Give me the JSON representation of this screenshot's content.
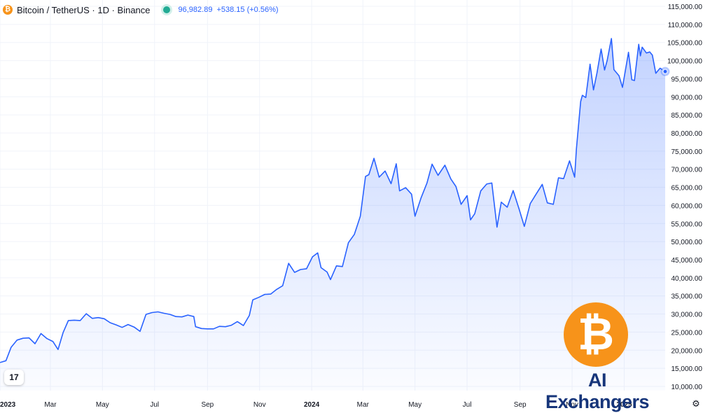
{
  "legend": {
    "symbol": "Bitcoin / TetherUS · 1D · Binance",
    "price": "96,982.89",
    "change": "+538.15 (+0.56%)",
    "coin_glyph": "₿",
    "icon": "bitcoin-icon"
  },
  "watermark": {
    "brand_name": "AI Exchangers",
    "brand_glyph": "₿",
    "tv_logo": "17"
  },
  "colors": {
    "line": "#2962ff",
    "fill": "#2962ff",
    "grid": "#f0f3fa",
    "axis_text": "#131722",
    "brand_orange": "#f7931a",
    "brand_navy": "#16357a",
    "status": "#22ab94"
  },
  "chart_data": {
    "type": "area",
    "title": "Bitcoin / TetherUS · 1D · Binance",
    "xlabel": "",
    "ylabel": "",
    "xlim": [
      "2023-01-01",
      "2025-02-18"
    ],
    "ylim": [
      10000,
      115000
    ],
    "grid": true,
    "legend_position": "top-left",
    "y_axis_position": "right",
    "y_ticks": [
      10000,
      15000,
      20000,
      25000,
      30000,
      35000,
      40000,
      45000,
      50000,
      55000,
      60000,
      65000,
      70000,
      75000,
      80000,
      85000,
      90000,
      95000,
      100000,
      105000,
      110000,
      115000
    ],
    "y_tick_labels": [
      "10,000.00",
      "15,000.00",
      "20,000.00",
      "25,000.00",
      "30,000.00",
      "35,000.00",
      "40,000.00",
      "45,000.00",
      "50,000.00",
      "55,000.00",
      "60,000.00",
      "65,000.00",
      "70,000.00",
      "75,000.00",
      "80,000.00",
      "85,000.00",
      "90,000.00",
      "95,000.00",
      "100,000.00",
      "105,000.00",
      "110,000.00",
      "115,000.00"
    ],
    "x_ticks": [
      {
        "date": "2023-01-01",
        "label": "2023",
        "bold": true
      },
      {
        "date": "2023-03-01",
        "label": "Mar",
        "bold": false
      },
      {
        "date": "2023-05-01",
        "label": "May",
        "bold": false
      },
      {
        "date": "2023-07-01",
        "label": "Jul",
        "bold": false
      },
      {
        "date": "2023-09-01",
        "label": "Sep",
        "bold": false
      },
      {
        "date": "2023-11-01",
        "label": "Nov",
        "bold": false
      },
      {
        "date": "2024-01-01",
        "label": "2024",
        "bold": true
      },
      {
        "date": "2024-03-01",
        "label": "Mar",
        "bold": false
      },
      {
        "date": "2024-05-01",
        "label": "May",
        "bold": false
      },
      {
        "date": "2024-07-01",
        "label": "Jul",
        "bold": false
      },
      {
        "date": "2024-09-01",
        "label": "Sep",
        "bold": false
      },
      {
        "date": "2024-11-01",
        "label": "Nov",
        "bold": false
      },
      {
        "date": "2025-01-01",
        "label": "2025",
        "bold": true
      }
    ],
    "series": [
      {
        "name": "",
        "points": [
          [
            "2023-01-01",
            16600
          ],
          [
            "2023-01-08",
            17100
          ],
          [
            "2023-01-14",
            20800
          ],
          [
            "2023-01-21",
            22800
          ],
          [
            "2023-01-28",
            23300
          ],
          [
            "2023-02-04",
            23400
          ],
          [
            "2023-02-11",
            21800
          ],
          [
            "2023-02-18",
            24600
          ],
          [
            "2023-02-25",
            23200
          ],
          [
            "2023-03-04",
            22400
          ],
          [
            "2023-03-10",
            20200
          ],
          [
            "2023-03-16",
            24900
          ],
          [
            "2023-03-22",
            28200
          ],
          [
            "2023-03-29",
            28300
          ],
          [
            "2023-04-05",
            28200
          ],
          [
            "2023-04-12",
            30100
          ],
          [
            "2023-04-19",
            28800
          ],
          [
            "2023-04-26",
            29000
          ],
          [
            "2023-05-03",
            28700
          ],
          [
            "2023-05-10",
            27600
          ],
          [
            "2023-05-17",
            27000
          ],
          [
            "2023-05-24",
            26300
          ],
          [
            "2023-05-31",
            27100
          ],
          [
            "2023-06-07",
            26400
          ],
          [
            "2023-06-14",
            25200
          ],
          [
            "2023-06-21",
            29900
          ],
          [
            "2023-06-28",
            30400
          ],
          [
            "2023-07-05",
            30600
          ],
          [
            "2023-07-12",
            30200
          ],
          [
            "2023-07-19",
            29900
          ],
          [
            "2023-07-26",
            29300
          ],
          [
            "2023-08-02",
            29200
          ],
          [
            "2023-08-09",
            29700
          ],
          [
            "2023-08-16",
            29300
          ],
          [
            "2023-08-18",
            26500
          ],
          [
            "2023-08-25",
            26000
          ],
          [
            "2023-09-01",
            25900
          ],
          [
            "2023-09-08",
            25900
          ],
          [
            "2023-09-15",
            26600
          ],
          [
            "2023-09-22",
            26500
          ],
          [
            "2023-09-29",
            26900
          ],
          [
            "2023-10-06",
            27900
          ],
          [
            "2023-10-13",
            26800
          ],
          [
            "2023-10-20",
            29600
          ],
          [
            "2023-10-24",
            33900
          ],
          [
            "2023-10-31",
            34600
          ],
          [
            "2023-11-07",
            35400
          ],
          [
            "2023-11-14",
            35500
          ],
          [
            "2023-11-21",
            36800
          ],
          [
            "2023-11-28",
            37800
          ],
          [
            "2023-12-05",
            44000
          ],
          [
            "2023-12-12",
            41500
          ],
          [
            "2023-12-19",
            42300
          ],
          [
            "2023-12-26",
            42500
          ],
          [
            "2024-01-02",
            45800
          ],
          [
            "2024-01-08",
            46900
          ],
          [
            "2024-01-12",
            42800
          ],
          [
            "2024-01-19",
            41600
          ],
          [
            "2024-01-23",
            39500
          ],
          [
            "2024-01-30",
            43300
          ],
          [
            "2024-02-06",
            43100
          ],
          [
            "2024-02-13",
            49700
          ],
          [
            "2024-02-20",
            52000
          ],
          [
            "2024-02-27",
            57000
          ],
          [
            "2024-03-04",
            68000
          ],
          [
            "2024-03-08",
            68500
          ],
          [
            "2024-03-14",
            73000
          ],
          [
            "2024-03-20",
            67800
          ],
          [
            "2024-03-27",
            69500
          ],
          [
            "2024-04-03",
            66000
          ],
          [
            "2024-04-09",
            71500
          ],
          [
            "2024-04-13",
            64000
          ],
          [
            "2024-04-20",
            64900
          ],
          [
            "2024-04-27",
            63100
          ],
          [
            "2024-05-01",
            57000
          ],
          [
            "2024-05-08",
            62000
          ],
          [
            "2024-05-15",
            66200
          ],
          [
            "2024-05-21",
            71400
          ],
          [
            "2024-05-28",
            68300
          ],
          [
            "2024-06-05",
            71100
          ],
          [
            "2024-06-12",
            67300
          ],
          [
            "2024-06-18",
            65200
          ],
          [
            "2024-06-24",
            60300
          ],
          [
            "2024-07-01",
            62700
          ],
          [
            "2024-07-05",
            56000
          ],
          [
            "2024-07-10",
            57700
          ],
          [
            "2024-07-17",
            64000
          ],
          [
            "2024-07-24",
            65900
          ],
          [
            "2024-07-30",
            66200
          ],
          [
            "2024-08-05",
            54000
          ],
          [
            "2024-08-10",
            60900
          ],
          [
            "2024-08-17",
            59500
          ],
          [
            "2024-08-24",
            64100
          ],
          [
            "2024-08-31",
            58900
          ],
          [
            "2024-09-06",
            54200
          ],
          [
            "2024-09-13",
            60500
          ],
          [
            "2024-09-20",
            63200
          ],
          [
            "2024-09-27",
            65800
          ],
          [
            "2024-10-03",
            60700
          ],
          [
            "2024-10-10",
            60300
          ],
          [
            "2024-10-16",
            67600
          ],
          [
            "2024-10-22",
            67400
          ],
          [
            "2024-10-29",
            72300
          ],
          [
            "2024-11-04",
            67800
          ],
          [
            "2024-11-06",
            75600
          ],
          [
            "2024-11-11",
            88700
          ],
          [
            "2024-11-13",
            90400
          ],
          [
            "2024-11-17",
            89800
          ],
          [
            "2024-11-22",
            99000
          ],
          [
            "2024-11-26",
            91900
          ],
          [
            "2024-11-30",
            96400
          ],
          [
            "2024-12-05",
            103200
          ],
          [
            "2024-12-09",
            97400
          ],
          [
            "2024-12-12",
            100000
          ],
          [
            "2024-12-17",
            106100
          ],
          [
            "2024-12-20",
            97500
          ],
          [
            "2024-12-26",
            95800
          ],
          [
            "2024-12-30",
            92600
          ],
          [
            "2025-01-06",
            102300
          ],
          [
            "2025-01-10",
            94700
          ],
          [
            "2025-01-13",
            94500
          ],
          [
            "2025-01-18",
            104500
          ],
          [
            "2025-01-20",
            101300
          ],
          [
            "2025-01-22",
            103700
          ],
          [
            "2025-01-27",
            102100
          ],
          [
            "2025-01-31",
            102400
          ],
          [
            "2025-02-03",
            101500
          ],
          [
            "2025-02-07",
            96500
          ],
          [
            "2025-02-12",
            97900
          ],
          [
            "2025-02-18",
            96982.89
          ]
        ]
      }
    ]
  }
}
